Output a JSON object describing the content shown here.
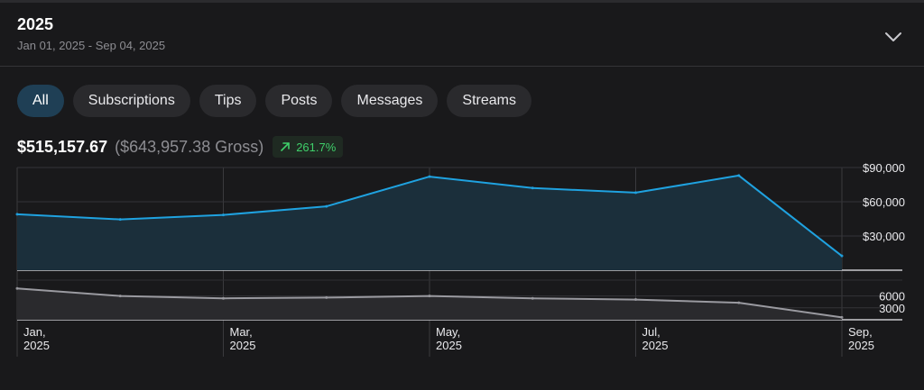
{
  "header": {
    "title": "2025",
    "date_range": "Jan 01, 2025 - Sep 04, 2025",
    "expand_icon": "chevron-down-icon"
  },
  "tabs": [
    {
      "label": "All",
      "active": true
    },
    {
      "label": "Subscriptions",
      "active": false
    },
    {
      "label": "Tips",
      "active": false
    },
    {
      "label": "Posts",
      "active": false
    },
    {
      "label": "Messages",
      "active": false
    },
    {
      "label": "Streams",
      "active": false
    }
  ],
  "summary": {
    "net": "$515,157.67",
    "gross": "($643,957.38 Gross)",
    "change": "261.7%",
    "change_icon": "arrow-up-right-icon"
  },
  "colors": {
    "accent": "#1fa2e0",
    "positive": "#3fcf6a",
    "active_tab": "#1f3f55"
  },
  "chart_data": [
    {
      "type": "area",
      "x": [
        "Jan 2025",
        "Feb 2025",
        "Mar 2025",
        "Apr 2025",
        "May 2025",
        "Jun 2025",
        "Jul 2025",
        "Aug 2025",
        "Sep 2025"
      ],
      "values": [
        49000,
        44500,
        48500,
        56000,
        82000,
        72000,
        68000,
        83000,
        12500
      ],
      "y_ticks": [
        "$90,000",
        "$60,000",
        "$30,000"
      ],
      "y_tick_values": [
        90000,
        60000,
        30000
      ],
      "ylim": [
        0,
        90000
      ],
      "color": "#1fa2e0",
      "grid": true
    },
    {
      "type": "area",
      "x": [
        "Jan 2025",
        "Feb 2025",
        "Mar 2025",
        "Apr 2025",
        "May 2025",
        "Jun 2025",
        "Jul 2025",
        "Aug 2025",
        "Sep 2025"
      ],
      "values": [
        7900,
        6000,
        5400,
        5600,
        6000,
        5400,
        5100,
        4300,
        600
      ],
      "y_ticks": [
        "6000",
        "3000"
      ],
      "y_tick_values": [
        6000,
        3000
      ],
      "ylim": [
        0,
        10000
      ],
      "color": "#9a9aa0",
      "grid": true
    }
  ],
  "x_axis": {
    "ticks": [
      {
        "month": "Jan,",
        "year": "2025"
      },
      {
        "month": "Mar,",
        "year": "2025"
      },
      {
        "month": "May,",
        "year": "2025"
      },
      {
        "month": "Jul,",
        "year": "2025"
      },
      {
        "month": "Sep,",
        "year": "2025"
      }
    ]
  }
}
